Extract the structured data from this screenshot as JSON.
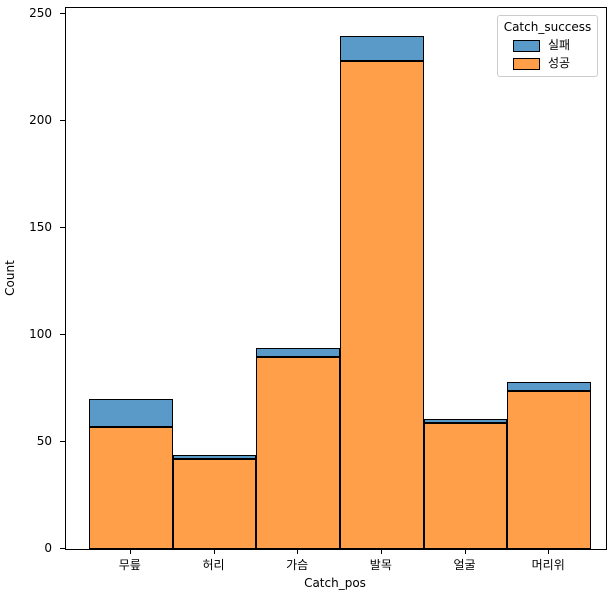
{
  "figure": {
    "background": "#ffffff",
    "xlabel": "Catch_pos",
    "ylabel": "Count"
  },
  "legend": {
    "title": "Catch_success",
    "position": "upper right",
    "entries": [
      {
        "label": "실패",
        "color": "#5a9ac8"
      },
      {
        "label": "성공",
        "color": "#ff9f4a"
      }
    ]
  },
  "chart_data": {
    "type": "bar",
    "subtype": "stacked-histogram",
    "title": "",
    "xlabel": "Catch_pos",
    "ylabel": "Count",
    "categories": [
      "무릎",
      "허리",
      "가슴",
      "발목",
      "얼굴",
      "머리위"
    ],
    "series": [
      {
        "name": "성공",
        "color": "#ff9f4a",
        "values": [
          57,
          42,
          90,
          228,
          59,
          74
        ]
      },
      {
        "name": "실패",
        "color": "#5a9ac8",
        "values": [
          13,
          2,
          4,
          12,
          2,
          4
        ]
      }
    ],
    "totals": [
      70,
      44,
      94,
      240,
      61,
      78
    ],
    "ylim": [
      0,
      253
    ],
    "yticks": [
      0,
      50,
      100,
      150,
      200,
      250
    ],
    "grid": false,
    "legend_title": "Catch_success",
    "legend_entries_order": [
      "실패",
      "성공"
    ],
    "bar_edge_color": "#000000",
    "plot_background": "#ffffff"
  }
}
